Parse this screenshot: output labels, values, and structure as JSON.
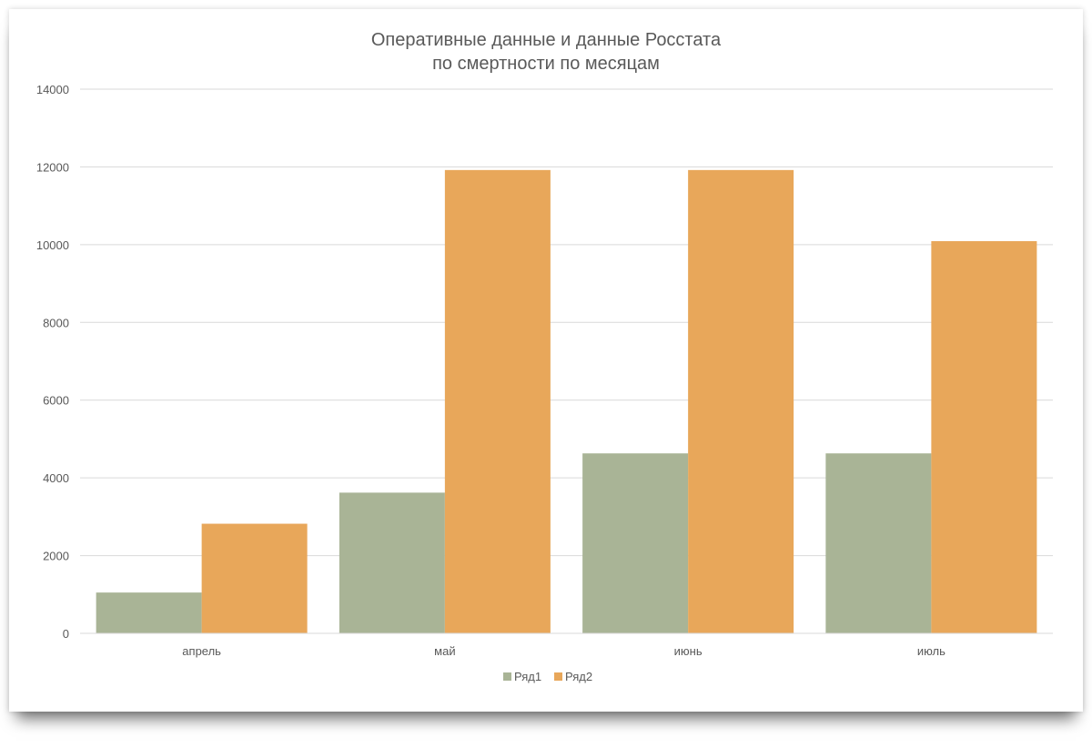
{
  "chart_data": {
    "type": "bar",
    "title": [
      "Оперативные данные и данные Росстата",
      "по смертности по месяцам"
    ],
    "xlabel": "",
    "ylabel": "",
    "categories": [
      "апрель",
      "май",
      "июнь",
      "июль"
    ],
    "series": [
      {
        "name": "Ряд1",
        "color": "#a9b496",
        "values": [
          1050,
          3620,
          4630,
          4630
        ]
      },
      {
        "name": "Ряд2",
        "color": "#e8a75a",
        "values": [
          2820,
          11920,
          11920,
          10090
        ]
      }
    ],
    "ylim": [
      0,
      14000
    ],
    "yticks": [
      "0",
      "2000",
      "4000",
      "6000",
      "8000",
      "10000",
      "12000",
      "14000"
    ],
    "grid": true,
    "legend_position": "bottom"
  }
}
